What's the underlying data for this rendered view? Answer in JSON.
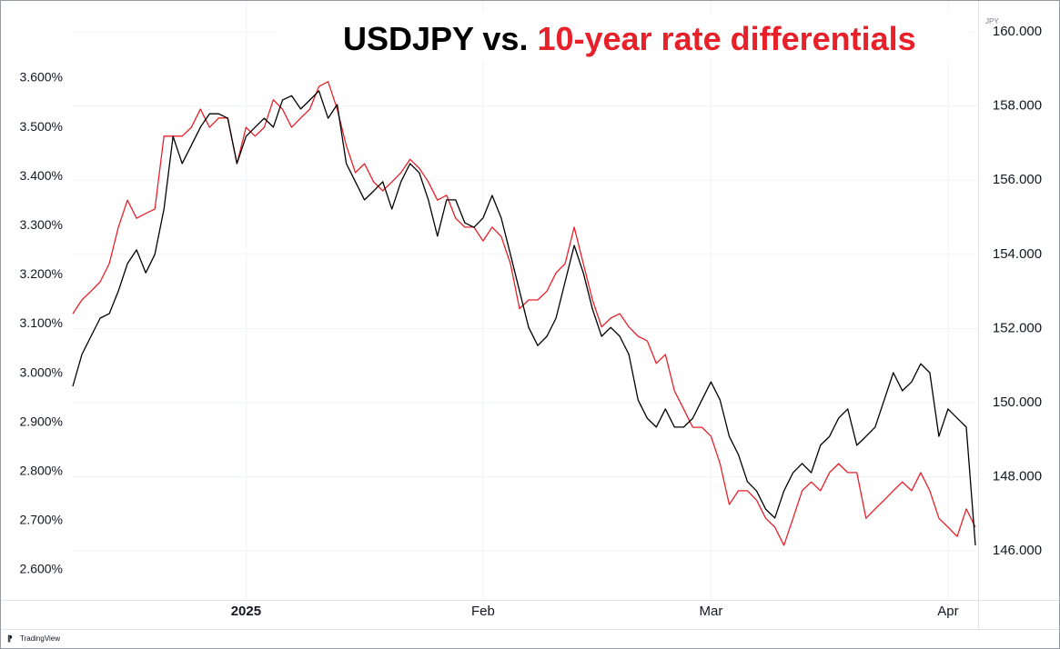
{
  "chart_data": {
    "type": "line",
    "title": [
      {
        "text": "USDJPY vs.",
        "color": "#000000"
      },
      {
        "text": "10-year rate differentials",
        "color": "#e8202a"
      }
    ],
    "y2_label": "JPY",
    "watermark": "TradingView",
    "categories": [
      null,
      null,
      null,
      null,
      null,
      null,
      null,
      null,
      null,
      null,
      null,
      null,
      null,
      null,
      null,
      null,
      null,
      null,
      null,
      "2025",
      null,
      null,
      null,
      null,
      null,
      null,
      null,
      null,
      null,
      null,
      null,
      null,
      null,
      null,
      null,
      null,
      null,
      null,
      null,
      null,
      null,
      null,
      null,
      null,
      null,
      "Feb",
      null,
      null,
      null,
      null,
      null,
      null,
      null,
      null,
      null,
      null,
      null,
      null,
      null,
      null,
      null,
      null,
      null,
      null,
      null,
      null,
      null,
      null,
      null,
      null,
      "Mar",
      null,
      null,
      null,
      null,
      null,
      null,
      null,
      null,
      null,
      null,
      null,
      null,
      null,
      null,
      null,
      null,
      null,
      null,
      null,
      null,
      null,
      null,
      null,
      null,
      null,
      "Apr",
      null,
      null,
      null
    ],
    "series": [
      {
        "color": "#e8202a",
        "axis": "y",
        "values": [
          3.121,
          3.149,
          3.167,
          3.186,
          3.223,
          3.297,
          3.352,
          3.315,
          3.325,
          3.334,
          3.482,
          3.482,
          3.482,
          3.5,
          3.537,
          3.5,
          3.519,
          3.519,
          3.426,
          3.5,
          3.482,
          3.5,
          3.556,
          3.537,
          3.5,
          3.519,
          3.537,
          3.583,
          3.593,
          3.537,
          3.463,
          3.408,
          3.426,
          3.389,
          3.371,
          3.389,
          3.408,
          3.435,
          3.417,
          3.389,
          3.352,
          3.362,
          3.315,
          3.297,
          3.297,
          3.269,
          3.297,
          3.278,
          3.223,
          3.131,
          3.149,
          3.149,
          3.167,
          3.204,
          3.223,
          3.297,
          3.223,
          3.149,
          3.094,
          3.112,
          3.121,
          3.094,
          3.075,
          3.066,
          3.02,
          3.038,
          2.964,
          2.927,
          2.89,
          2.89,
          2.872,
          2.816,
          2.733,
          2.761,
          2.761,
          2.742,
          2.705,
          2.687,
          2.65,
          2.705,
          2.761,
          2.779,
          2.761,
          2.798,
          2.816,
          2.798,
          2.798,
          2.705,
          2.724,
          2.742,
          2.761,
          2.779,
          2.761,
          2.798,
          2.761,
          2.705,
          2.687,
          2.668,
          2.724,
          2.687
        ]
      },
      {
        "color": "#000000",
        "axis": "y2",
        "values": [
          150.44,
          151.3,
          151.79,
          152.28,
          152.4,
          153.01,
          153.75,
          154.12,
          153.5,
          154.0,
          155.22,
          157.18,
          156.45,
          156.94,
          157.43,
          157.79,
          157.79,
          157.67,
          156.45,
          157.18,
          157.43,
          157.67,
          157.43,
          158.16,
          158.28,
          157.92,
          158.16,
          158.41,
          157.67,
          158.04,
          156.45,
          155.96,
          155.47,
          155.71,
          155.96,
          155.22,
          155.96,
          156.45,
          156.2,
          155.47,
          154.49,
          155.47,
          155.47,
          154.85,
          154.73,
          154.98,
          155.59,
          154.98,
          154.0,
          153.01,
          152.03,
          151.54,
          151.79,
          152.28,
          153.26,
          154.24,
          153.5,
          152.52,
          151.79,
          152.03,
          151.79,
          151.3,
          150.07,
          149.58,
          149.34,
          149.83,
          149.34,
          149.34,
          149.58,
          150.07,
          150.56,
          150.07,
          149.09,
          148.6,
          147.87,
          147.62,
          147.13,
          146.89,
          147.62,
          148.11,
          148.36,
          148.11,
          148.85,
          149.09,
          149.58,
          149.83,
          148.85,
          149.09,
          149.34,
          150.07,
          150.81,
          150.32,
          150.56,
          151.05,
          150.81,
          149.09,
          149.83,
          149.58,
          149.34,
          146.15
        ]
      }
    ],
    "ylim": [
      2.539,
      3.722
    ],
    "yticks": [
      {
        "value": 2.6,
        "label": "2.600%"
      },
      {
        "value": 2.7,
        "label": "2.700%"
      },
      {
        "value": 2.8,
        "label": "2.800%"
      },
      {
        "value": 2.9,
        "label": "2.900%"
      },
      {
        "value": 3.0,
        "label": "3.000%"
      },
      {
        "value": 3.1,
        "label": "3.100%"
      },
      {
        "value": 3.2,
        "label": "3.200%"
      },
      {
        "value": 3.3,
        "label": "3.300%"
      },
      {
        "value": 3.4,
        "label": "3.400%"
      },
      {
        "value": 3.5,
        "label": "3.500%"
      },
      {
        "value": 3.6,
        "label": "3.600%"
      }
    ],
    "y2lim": [
      144.68,
      160.37
    ],
    "y2ticks": [
      {
        "value": 146,
        "label": "146.000"
      },
      {
        "value": 148,
        "label": "148.000"
      },
      {
        "value": 150,
        "label": "150.000"
      },
      {
        "value": 152,
        "label": "152.000"
      },
      {
        "value": 154,
        "label": "154.000"
      },
      {
        "value": 156,
        "label": "156.000"
      },
      {
        "value": 158,
        "label": "158.000"
      },
      {
        "value": 160,
        "label": "160.000"
      }
    ],
    "grid": true
  }
}
